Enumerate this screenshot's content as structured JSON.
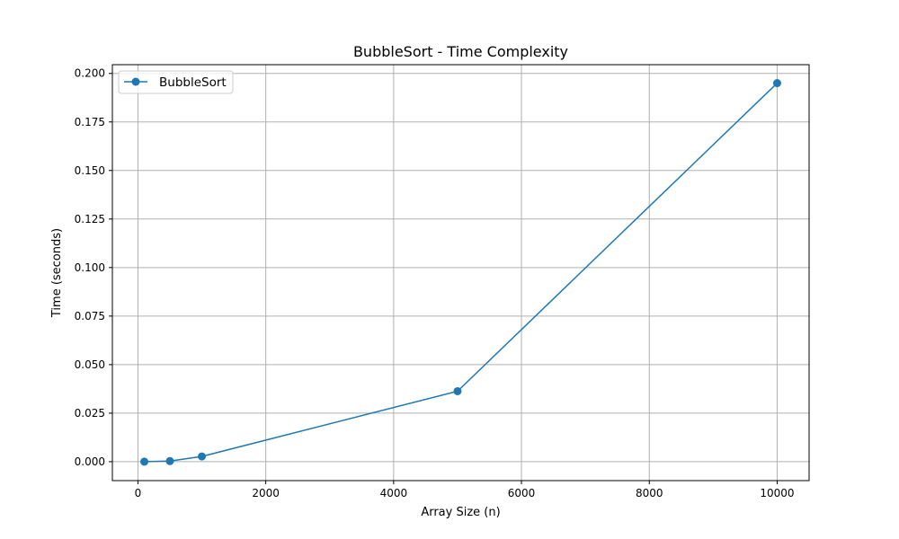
{
  "chart_data": {
    "type": "line",
    "title": "BubbleSort - Time Complexity",
    "xlabel": "Array Size (n)",
    "ylabel": "Time (seconds)",
    "xlim": [
      -400,
      10500
    ],
    "ylim": [
      -0.00975,
      0.2045
    ],
    "xticks": [
      0,
      2000,
      4000,
      6000,
      8000,
      10000
    ],
    "xtick_labels": [
      "0",
      "2000",
      "4000",
      "6000",
      "8000",
      "10000"
    ],
    "yticks": [
      0.0,
      0.025,
      0.05,
      0.075,
      0.1,
      0.125,
      0.15,
      0.175,
      0.2
    ],
    "ytick_labels": [
      "0.000",
      "0.025",
      "0.050",
      "0.075",
      "0.100",
      "0.125",
      "0.150",
      "0.175",
      "0.200"
    ],
    "grid": true,
    "legend_position": "upper-left",
    "series": [
      {
        "name": "BubbleSort",
        "color": "#1f77b4",
        "marker": "circle",
        "x": [
          100,
          500,
          1000,
          5000,
          10000
        ],
        "y": [
          0.0,
          0.0003,
          0.0027,
          0.0363,
          0.195
        ]
      }
    ]
  }
}
